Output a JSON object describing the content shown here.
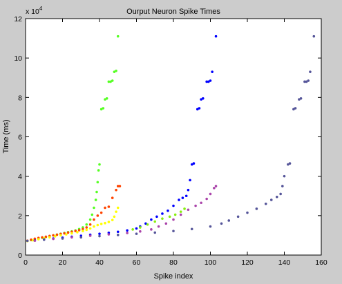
{
  "chart_data": {
    "type": "scatter",
    "title": "Ourput Neuron Spike Times",
    "xlabel": "Spike index",
    "ylabel": "Time (ms)",
    "y_multiplier_label": "x 10",
    "y_multiplier_exponent": "4",
    "xlim": [
      0,
      160
    ],
    "ylim": [
      0,
      12
    ],
    "x_ticks": [
      "0",
      "20",
      "40",
      "60",
      "80",
      "100",
      "120",
      "140",
      "160"
    ],
    "y_ticks": [
      "0",
      "2",
      "4",
      "6",
      "8",
      "10",
      "12"
    ],
    "grid": false,
    "legend": "none",
    "series": [
      {
        "color": "#55ff22",
        "points": [
          [
            1,
            0.72
          ],
          [
            3,
            0.76
          ],
          [
            5,
            0.8
          ],
          [
            7,
            0.84
          ],
          [
            9,
            0.88
          ],
          [
            11,
            0.92
          ],
          [
            13,
            0.96
          ],
          [
            15,
            1.0
          ],
          [
            17,
            1.04
          ],
          [
            19,
            1.08
          ],
          [
            21,
            1.12
          ],
          [
            23,
            1.16
          ],
          [
            25,
            1.2
          ],
          [
            27,
            1.25
          ],
          [
            29,
            1.32
          ],
          [
            31,
            1.4
          ],
          [
            33,
            1.55
          ],
          [
            35,
            1.8
          ],
          [
            36,
            2.05
          ],
          [
            37,
            2.4
          ],
          [
            38,
            2.8
          ],
          [
            38.5,
            3.2
          ],
          [
            39,
            3.7
          ],
          [
            39.5,
            4.3
          ],
          [
            40,
            4.6
          ],
          [
            41,
            7.4
          ],
          [
            42,
            7.45
          ],
          [
            43,
            7.9
          ],
          [
            44,
            7.95
          ],
          [
            45,
            8.8
          ],
          [
            46,
            8.8
          ],
          [
            47,
            8.85
          ],
          [
            48,
            9.3
          ],
          [
            49,
            9.35
          ],
          [
            50,
            11.1
          ]
        ]
      },
      {
        "color": "#ff4400",
        "points": [
          [
            1,
            0.73
          ],
          [
            3,
            0.78
          ],
          [
            5,
            0.83
          ],
          [
            7,
            0.87
          ],
          [
            9,
            0.9
          ],
          [
            11,
            0.93
          ],
          [
            13,
            0.97
          ],
          [
            15,
            1.0
          ],
          [
            17,
            1.03
          ],
          [
            19,
            1.07
          ],
          [
            21,
            1.1
          ],
          [
            23,
            1.14
          ],
          [
            25,
            1.18
          ],
          [
            27,
            1.22
          ],
          [
            29,
            1.26
          ],
          [
            31,
            1.32
          ],
          [
            33,
            1.4
          ],
          [
            35,
            1.55
          ],
          [
            37,
            1.8
          ],
          [
            39,
            2.0
          ],
          [
            41,
            2.15
          ],
          [
            43,
            2.4
          ],
          [
            45,
            2.45
          ],
          [
            47,
            2.9
          ],
          [
            49,
            3.3
          ],
          [
            50,
            3.5
          ],
          [
            51,
            3.5
          ]
        ]
      },
      {
        "color": "#ffff00",
        "points": [
          [
            1,
            0.71
          ],
          [
            4,
            0.75
          ],
          [
            7,
            0.8
          ],
          [
            10,
            0.85
          ],
          [
            13,
            0.9
          ],
          [
            16,
            0.95
          ],
          [
            19,
            1.0
          ],
          [
            22,
            1.05
          ],
          [
            25,
            1.1
          ],
          [
            28,
            1.16
          ],
          [
            31,
            1.22
          ],
          [
            33,
            1.28
          ],
          [
            35,
            1.35
          ],
          [
            37,
            1.45
          ],
          [
            39,
            1.52
          ],
          [
            41,
            1.58
          ],
          [
            43,
            1.62
          ],
          [
            45,
            1.68
          ],
          [
            47,
            1.78
          ],
          [
            48,
            1.95
          ],
          [
            49,
            2.2
          ],
          [
            50,
            2.4
          ]
        ]
      },
      {
        "color": "#0000ff",
        "points": [
          [
            5,
            0.74
          ],
          [
            10,
            0.79
          ],
          [
            15,
            0.84
          ],
          [
            20,
            0.88
          ],
          [
            25,
            0.93
          ],
          [
            30,
            0.98
          ],
          [
            35,
            1.03
          ],
          [
            40,
            1.08
          ],
          [
            45,
            1.13
          ],
          [
            50,
            1.18
          ],
          [
            55,
            1.25
          ],
          [
            60,
            1.35
          ],
          [
            62,
            1.45
          ],
          [
            65,
            1.6
          ],
          [
            68,
            1.8
          ],
          [
            71,
            1.95
          ],
          [
            74,
            2.1
          ],
          [
            77,
            2.25
          ],
          [
            80,
            2.5
          ],
          [
            83,
            2.8
          ],
          [
            85,
            2.9
          ],
          [
            87,
            3.0
          ],
          [
            88,
            3.3
          ],
          [
            89,
            3.8
          ],
          [
            90,
            4.6
          ],
          [
            91,
            4.65
          ],
          [
            93,
            7.4
          ],
          [
            94,
            7.45
          ],
          [
            95,
            7.9
          ],
          [
            96,
            7.95
          ],
          [
            98,
            8.8
          ],
          [
            99,
            8.8
          ],
          [
            100,
            8.85
          ],
          [
            101,
            9.3
          ],
          [
            103,
            11.1
          ]
        ]
      },
      {
        "color": "#88ee11",
        "points": [
          [
            58,
            1.3
          ],
          [
            62,
            1.4
          ],
          [
            66,
            1.55
          ],
          [
            70,
            1.7
          ],
          [
            74,
            1.85
          ],
          [
            78,
            1.95
          ],
          [
            81,
            2.05
          ],
          [
            84,
            2.2
          ],
          [
            86,
            2.35
          ]
        ]
      },
      {
        "color": "#aa44aa",
        "points": [
          [
            5,
            0.73
          ],
          [
            15,
            0.82
          ],
          [
            25,
            0.9
          ],
          [
            35,
            0.98
          ],
          [
            45,
            1.05
          ],
          [
            55,
            1.12
          ],
          [
            62,
            1.2
          ],
          [
            68,
            1.3
          ],
          [
            72,
            1.45
          ],
          [
            76,
            1.6
          ],
          [
            80,
            1.8
          ],
          [
            84,
            2.05
          ],
          [
            88,
            2.3
          ],
          [
            92,
            2.5
          ],
          [
            95,
            2.65
          ],
          [
            98,
            2.85
          ],
          [
            100,
            3.1
          ],
          [
            102,
            3.4
          ],
          [
            103,
            3.5
          ]
        ]
      },
      {
        "color": "#555599",
        "points": [
          [
            1,
            0.72
          ],
          [
            10,
            0.78
          ],
          [
            20,
            0.84
          ],
          [
            30,
            0.9
          ],
          [
            40,
            0.96
          ],
          [
            50,
            1.02
          ],
          [
            60,
            1.08
          ],
          [
            70,
            1.14
          ],
          [
            80,
            1.22
          ],
          [
            90,
            1.32
          ],
          [
            100,
            1.45
          ],
          [
            106,
            1.6
          ],
          [
            110,
            1.75
          ],
          [
            115,
            1.95
          ],
          [
            120,
            2.15
          ],
          [
            125,
            2.35
          ],
          [
            130,
            2.6
          ],
          [
            133,
            2.8
          ],
          [
            136,
            2.95
          ],
          [
            138,
            3.1
          ],
          [
            139,
            3.5
          ],
          [
            140,
            4.0
          ],
          [
            142,
            4.6
          ],
          [
            143,
            4.65
          ],
          [
            145,
            7.4
          ],
          [
            146,
            7.45
          ],
          [
            148,
            7.9
          ],
          [
            149,
            7.95
          ],
          [
            151,
            8.8
          ],
          [
            152,
            8.8
          ],
          [
            153,
            8.85
          ],
          [
            154,
            9.3
          ],
          [
            156,
            11.1
          ]
        ]
      }
    ]
  }
}
